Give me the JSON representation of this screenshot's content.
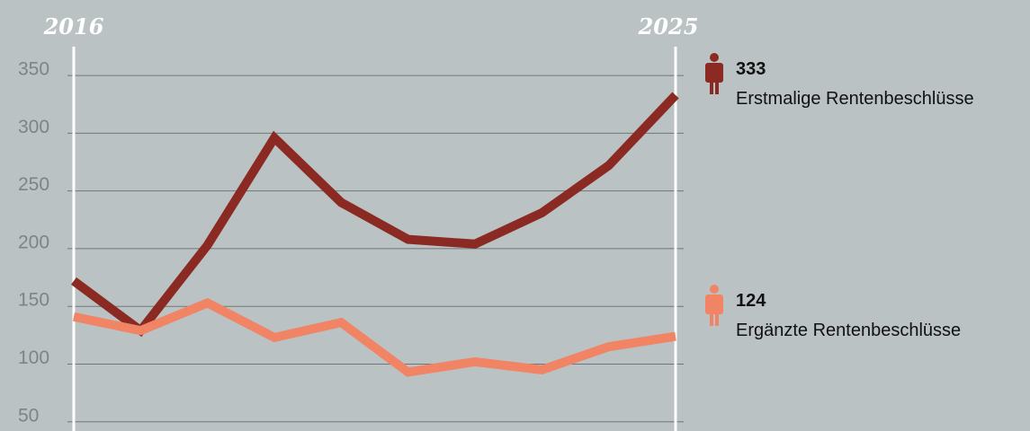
{
  "chart_data": {
    "type": "line",
    "categories": [
      "2016",
      null,
      null,
      null,
      null,
      null,
      null,
      null,
      null,
      "2025"
    ],
    "series": [
      {
        "name": "Erstmalige Rentenbeschlüsse",
        "color": "#8b2a22",
        "values": [
          172,
          129,
          203,
          296,
          240,
          208,
          204,
          231,
          272,
          333
        ]
      },
      {
        "name": "Ergänzte Rentenbeschlüsse",
        "color": "#f08465",
        "values": [
          141,
          129,
          153,
          123,
          136,
          93,
          102,
          95,
          115,
          124
        ]
      }
    ],
    "ylim": [
      42,
      375
    ],
    "yticks": [
      50,
      100,
      150,
      200,
      250,
      300,
      350
    ],
    "grid": true
  }
}
